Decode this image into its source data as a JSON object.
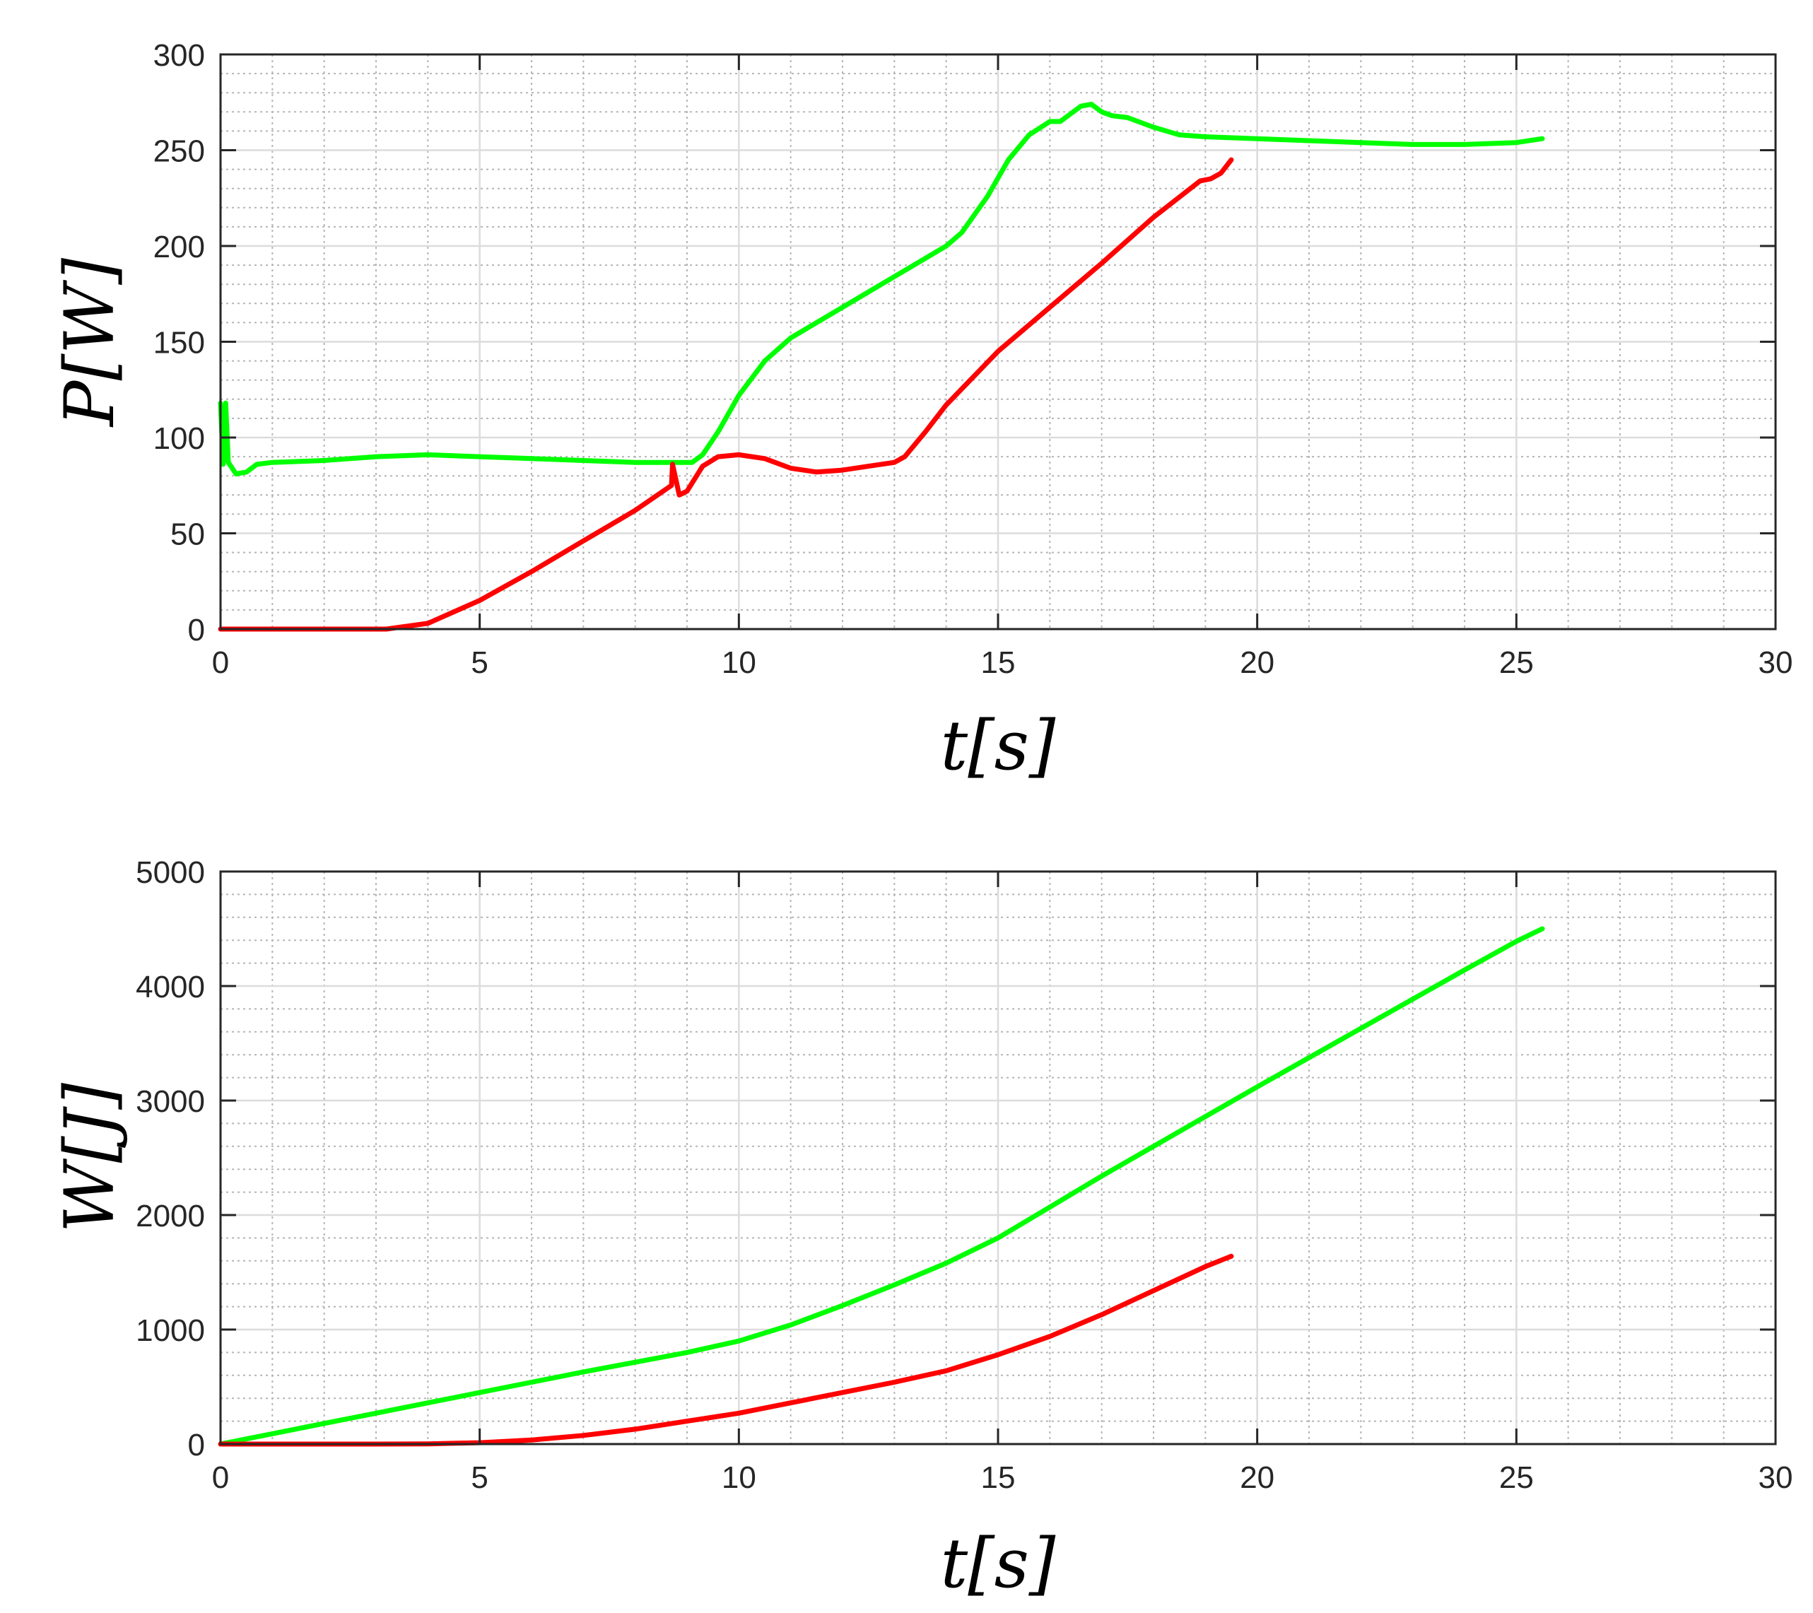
{
  "chart_data": [
    {
      "type": "line",
      "xlabel": "t[s]",
      "ylabel": "P[W]",
      "xlim": [
        0,
        30
      ],
      "ylim": [
        0,
        300
      ],
      "xticks": [
        "0",
        "5",
        "10",
        "15",
        "20",
        "25",
        "30"
      ],
      "yticks": [
        "0",
        "50",
        "100",
        "150",
        "200",
        "250",
        "300"
      ],
      "grid": true,
      "minor_grid": true,
      "series": [
        {
          "color": "#00ff00",
          "x": [
            0,
            0.05,
            0.1,
            0.15,
            0.3,
            0.5,
            0.7,
            1,
            2,
            3,
            4,
            5,
            6,
            7,
            8,
            8.8,
            9.1,
            9.3,
            9.6,
            10,
            10.5,
            11,
            12,
            13,
            14,
            14.3,
            14.8,
            15.2,
            15.6,
            16,
            16.2,
            16.4,
            16.6,
            16.8,
            17,
            17.2,
            17.5,
            18,
            18.5,
            19,
            20,
            21,
            22,
            23,
            24,
            25,
            25.5
          ],
          "y": [
            118,
            86,
            118,
            87,
            81,
            82,
            86,
            87,
            88,
            90,
            91,
            90,
            89,
            88,
            87,
            87,
            87,
            91,
            103,
            122,
            140,
            152,
            168,
            184,
            200,
            207,
            226,
            245,
            258,
            265,
            265,
            269,
            273,
            274,
            270,
            268,
            267,
            262,
            258,
            257,
            256,
            255,
            254,
            253,
            253,
            254,
            256
          ]
        },
        {
          "color": "#ff0000",
          "x": [
            0,
            1,
            2,
            3,
            3.2,
            4,
            5,
            6,
            7,
            8,
            8.7,
            8.72,
            8.85,
            9,
            9.3,
            9.6,
            10,
            10.5,
            11,
            11.5,
            12,
            12.5,
            13,
            13.2,
            13.6,
            14,
            15,
            16,
            17,
            18,
            18.9,
            19.1,
            19.3,
            19.5
          ],
          "y": [
            0,
            0,
            0,
            0,
            0,
            3,
            15,
            30,
            46,
            62,
            75,
            86,
            70,
            72,
            85,
            90,
            91,
            89,
            84,
            82,
            83,
            85,
            87,
            90,
            103,
            117,
            145,
            168,
            191,
            215,
            234,
            235,
            238,
            245
          ]
        }
      ]
    },
    {
      "type": "line",
      "xlabel": "t[s]",
      "ylabel": "W[J]",
      "xlim": [
        0,
        30
      ],
      "ylim": [
        0,
        5000
      ],
      "xticks": [
        "0",
        "5",
        "10",
        "15",
        "20",
        "25",
        "30"
      ],
      "yticks": [
        "0",
        "1000",
        "2000",
        "3000",
        "4000",
        "5000"
      ],
      "grid": true,
      "minor_grid": true,
      "series": [
        {
          "color": "#00ff00",
          "x": [
            0,
            1,
            2,
            3,
            4,
            5,
            6,
            7,
            8,
            9,
            10,
            11,
            12,
            13,
            14,
            15,
            16,
            17,
            18,
            19,
            20,
            21,
            22,
            23,
            24,
            25,
            25.5
          ],
          "y": [
            0,
            90,
            180,
            270,
            360,
            450,
            540,
            630,
            715,
            800,
            900,
            1040,
            1210,
            1390,
            1580,
            1800,
            2070,
            2340,
            2600,
            2860,
            3120,
            3375,
            3630,
            3885,
            4140,
            4390,
            4500
          ]
        },
        {
          "color": "#ff0000",
          "x": [
            0,
            1,
            2,
            3,
            4,
            5,
            6,
            7,
            8,
            9,
            10,
            11,
            12,
            13,
            14,
            15,
            16,
            17,
            18,
            19,
            19.5
          ],
          "y": [
            0,
            0,
            0,
            0,
            2,
            12,
            35,
            75,
            130,
            200,
            270,
            360,
            450,
            540,
            640,
            780,
            940,
            1130,
            1340,
            1550,
            1640
          ]
        }
      ]
    }
  ]
}
